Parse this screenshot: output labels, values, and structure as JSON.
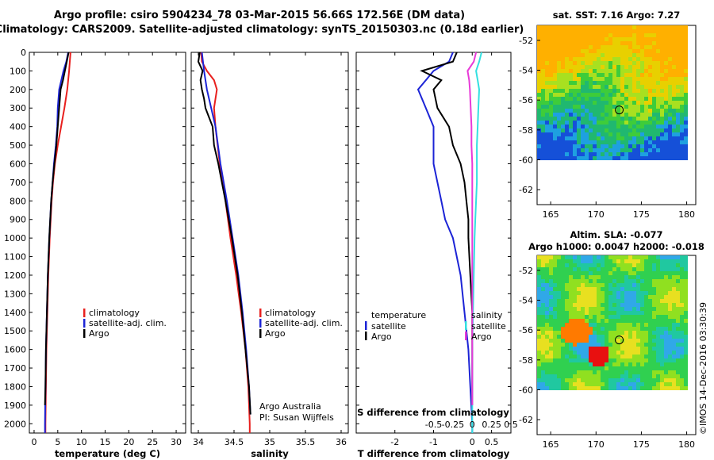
{
  "header": {
    "title_line1": "Argo profile: csiro 5904234_78 03-Mar-2015 56.66S 172.56E (DM data)",
    "title_line2": "Climatology: CARS2009. Satellite-adjusted climatology: synTS_20150303.nc (0.18d earlier)"
  },
  "colors": {
    "climatology": "#e8201e",
    "satellite": "#1c24d6",
    "argo": "#000000",
    "sat_salinity": "#33e0e0",
    "argo_salinity": "#e83ad8"
  },
  "chart_data": [
    {
      "type": "line",
      "name": "temperature-profile",
      "xlabel": "temperature (deg C)",
      "xlim": [
        -1,
        32
      ],
      "xticks": [
        0,
        5,
        10,
        15,
        20,
        25,
        30
      ],
      "ylim": [
        0,
        2050
      ],
      "yticks": [
        0,
        100,
        200,
        300,
        400,
        500,
        600,
        700,
        800,
        900,
        1000,
        1100,
        1200,
        1300,
        1400,
        1500,
        1600,
        1700,
        1800,
        1900,
        2000
      ],
      "legend": [
        "climatology",
        "satellite-adj. clim.",
        "Argo"
      ],
      "series": [
        {
          "name": "climatology",
          "color": "#e8201e",
          "depth": [
            0,
            100,
            200,
            300,
            400,
            500,
            600,
            700,
            800,
            900,
            1000,
            1200,
            1400,
            1600,
            1800,
            2000,
            2050
          ],
          "values": [
            7.7,
            7.4,
            7.0,
            6.4,
            5.7,
            5.0,
            4.4,
            4.0,
            3.7,
            3.5,
            3.3,
            3.0,
            2.8,
            2.6,
            2.5,
            2.4,
            2.4
          ]
        },
        {
          "name": "satellite-adj. clim.",
          "color": "#1c24d6",
          "depth": [
            0,
            50,
            100,
            200,
            300,
            400,
            500,
            600,
            700,
            800,
            900,
            1000,
            1200,
            1400,
            1600,
            1800,
            2000,
            2050
          ],
          "values": [
            7.2,
            6.8,
            6.2,
            5.3,
            5.0,
            4.9,
            4.6,
            4.2,
            3.9,
            3.6,
            3.4,
            3.2,
            2.9,
            2.7,
            2.5,
            2.4,
            2.3,
            2.3
          ]
        },
        {
          "name": "Argo",
          "color": "#000000",
          "depth": [
            0,
            50,
            100,
            150,
            200,
            300,
            400,
            500,
            600,
            700,
            800,
            900,
            1000,
            1200,
            1400,
            1600,
            1800,
            1900
          ],
          "values": [
            7.3,
            6.9,
            6.5,
            6.1,
            5.6,
            5.3,
            5.0,
            4.7,
            4.3,
            3.9,
            3.6,
            3.4,
            3.2,
            2.9,
            2.7,
            2.5,
            2.4,
            2.3
          ]
        }
      ]
    },
    {
      "type": "line",
      "name": "salinity-profile",
      "xlabel": "salinity",
      "xlim": [
        33.9,
        36.1
      ],
      "xticks": [
        34,
        34.5,
        35,
        35.5,
        36
      ],
      "ylim": [
        0,
        2050
      ],
      "legend": [
        "climatology",
        "satellite-adj. clim.",
        "Argo"
      ],
      "annotations": [
        "Argo Australia",
        "PI: Susan Wijffels"
      ],
      "series": [
        {
          "name": "climatology",
          "color": "#e8201e",
          "depth": [
            0,
            50,
            100,
            150,
            200,
            300,
            400,
            600,
            800,
            1000,
            1200,
            1400,
            1600,
            1800,
            2000,
            2050
          ],
          "values": [
            34.04,
            34.05,
            34.12,
            34.22,
            34.26,
            34.22,
            34.24,
            34.3,
            34.38,
            34.45,
            34.53,
            34.6,
            34.66,
            34.7,
            34.72,
            34.72
          ]
        },
        {
          "name": "satellite-adj. clim.",
          "color": "#1c24d6",
          "depth": [
            0,
            100,
            200,
            300,
            400,
            600,
            800,
            1000,
            1200,
            1400,
            1600,
            1800,
            1950
          ],
          "values": [
            34.05,
            34.08,
            34.12,
            34.18,
            34.24,
            34.31,
            34.4,
            34.48,
            34.56,
            34.62,
            34.67,
            34.71,
            34.73
          ]
        },
        {
          "name": "Argo",
          "color": "#000000",
          "depth": [
            0,
            50,
            100,
            150,
            200,
            250,
            300,
            350,
            400,
            500,
            600,
            700,
            800,
            1000,
            1200,
            1400,
            1600,
            1800,
            1950
          ],
          "values": [
            34.02,
            34.0,
            34.06,
            34.03,
            34.05,
            34.08,
            34.1,
            34.15,
            34.2,
            34.22,
            34.28,
            34.33,
            34.38,
            34.47,
            34.55,
            34.61,
            34.66,
            34.71,
            34.73
          ]
        }
      ]
    },
    {
      "type": "line",
      "name": "difference-profile",
      "xlabel": "T difference from climatology",
      "top_label": "S difference from climatology",
      "xlim": [
        -3.0,
        1.0
      ],
      "xticks": [
        -2,
        -1,
        0,
        0.5
      ],
      "xtick_labels": [
        "-2",
        "-1",
        "0",
        "0.5"
      ],
      "top_xticks": [
        -0.5,
        -0.25,
        0,
        0.25,
        0.5
      ],
      "top_xtick_labels": [
        "-0.5",
        "-0.25",
        "0",
        "0.25",
        "0.5"
      ],
      "ylim": [
        0,
        2050
      ],
      "legend_left_title": "temperature",
      "legend_right_title": "salinity",
      "legend_left": [
        "satellite",
        "Argo"
      ],
      "legend_right": [
        "satellite",
        "Argo"
      ],
      "series": [
        {
          "name": "temperature satellite",
          "color": "#1c24d6",
          "depth": [
            0,
            50,
            100,
            150,
            200,
            300,
            400,
            500,
            600,
            700,
            800,
            900,
            1000,
            1200,
            1400,
            1600,
            1800,
            2000,
            2050
          ],
          "values": [
            -0.5,
            -0.6,
            -1.0,
            -1.2,
            -1.4,
            -1.2,
            -1.0,
            -1.0,
            -1.0,
            -0.9,
            -0.8,
            -0.7,
            -0.5,
            -0.3,
            -0.2,
            -0.1,
            -0.05,
            0.0,
            0.0
          ]
        },
        {
          "name": "temperature Argo",
          "color": "#000000",
          "depth": [
            0,
            50,
            100,
            150,
            200,
            300,
            400,
            500,
            600,
            700,
            800,
            900,
            1000,
            1200,
            1400,
            1600,
            1800,
            1900
          ],
          "values": [
            -0.4,
            -0.5,
            -1.3,
            -0.8,
            -1.0,
            -0.9,
            -0.6,
            -0.5,
            -0.3,
            -0.2,
            -0.15,
            -0.1,
            -0.1,
            -0.05,
            0.0,
            0.0,
            0.0,
            0.0
          ]
        },
        {
          "name": "salinity satellite",
          "color": "#33e0e0",
          "depth": [
            0,
            50,
            100,
            150,
            200,
            300,
            400,
            500,
            600,
            700,
            800,
            900,
            1000,
            1200,
            1400,
            1600,
            1800,
            2000,
            2050
          ],
          "values": [
            0.12,
            0.09,
            0.05,
            0.07,
            0.09,
            0.08,
            0.07,
            0.06,
            0.06,
            0.06,
            0.05,
            0.04,
            0.03,
            0.02,
            0.01,
            0.0,
            0.0,
            0.0,
            0.0
          ]
        },
        {
          "name": "salinity Argo",
          "color": "#e83ad8",
          "depth": [
            0,
            50,
            100,
            150,
            200,
            300,
            400,
            500,
            600,
            700,
            800,
            900,
            1000,
            1200,
            1400,
            1600,
            1800,
            1900
          ],
          "values": [
            0.05,
            0.02,
            -0.06,
            -0.04,
            -0.03,
            -0.02,
            -0.01,
            -0.01,
            0.0,
            0.0,
            0.0,
            0.0,
            0.0,
            0.0,
            0.0,
            0.0,
            0.0,
            0.0
          ]
        }
      ]
    },
    {
      "type": "heatmap",
      "name": "sst-map",
      "title": "sat. SST: 7.16 Argo: 7.27",
      "xticks": [
        165,
        170,
        175,
        180
      ],
      "yticks": [
        -52,
        -54,
        -56,
        -58,
        -60,
        -62
      ],
      "xlim": [
        163.5,
        181
      ],
      "ylim": [
        -63,
        -51
      ],
      "data_extent": {
        "lon": [
          163.5,
          180
        ],
        "lat": [
          -60,
          -51
        ]
      },
      "marker": {
        "lon": 172.56,
        "lat": -56.66
      }
    },
    {
      "type": "heatmap",
      "name": "sla-map",
      "title_line1": "Altim. SLA: -0.077",
      "title_line2": "Argo h1000: 0.0047 h2000: -0.018",
      "xticks": [
        165,
        170,
        175,
        180
      ],
      "yticks": [
        -52,
        -54,
        -56,
        -58,
        -60,
        -62
      ],
      "xlim": [
        163.5,
        181
      ],
      "ylim": [
        -63,
        -51
      ],
      "data_extent": {
        "lon": [
          163.5,
          180
        ],
        "lat": [
          -60,
          -51
        ]
      },
      "marker": {
        "lon": 172.56,
        "lat": -56.66
      }
    }
  ],
  "footer": {
    "watermark": "©IMOS 14-Dec-2016 03:30:39"
  }
}
